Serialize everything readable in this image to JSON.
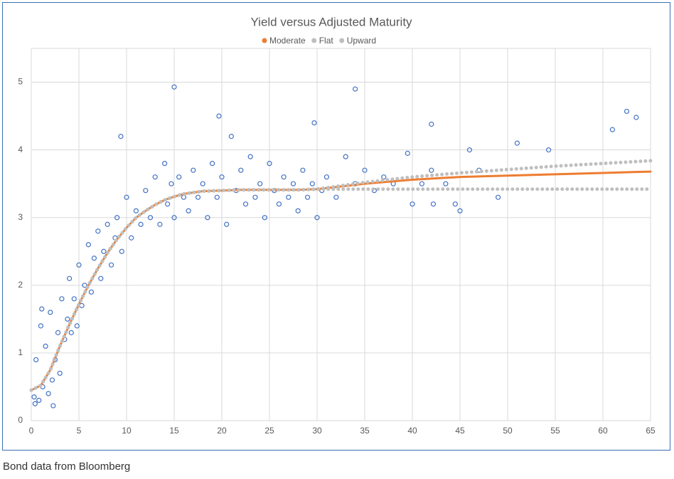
{
  "chart_data": {
    "type": "scatter",
    "title": "Yield versus Adjusted Maturity",
    "xlim": [
      0,
      65
    ],
    "xticks": [
      0,
      5,
      10,
      15,
      20,
      25,
      30,
      35,
      40,
      45,
      50,
      55,
      60,
      65
    ],
    "ylim": [
      0,
      5.5
    ],
    "yticks": [
      0,
      1,
      2,
      3,
      4,
      5
    ],
    "grid": true,
    "series": [
      {
        "style": "bubble",
        "color": "#4472c4",
        "x": [
          0.3,
          0.5,
          0.8,
          1,
          1.2,
          1.5,
          1.8,
          2,
          2.2,
          2.5,
          2.8,
          3,
          3.2,
          3.5,
          3.8,
          4,
          4.2,
          4.5,
          4.8,
          5,
          5.3,
          5.6,
          6,
          6.3,
          6.6,
          7,
          7.3,
          7.6,
          8,
          8.4,
          8.8,
          9,
          9.5,
          10,
          10.5,
          11,
          11.5,
          12,
          12.5,
          13,
          13.5,
          14,
          14.3,
          14.7,
          15,
          15.5,
          16,
          16.5,
          17,
          17.5,
          18,
          18.5,
          19,
          19.5,
          20,
          20.5,
          21,
          21.5,
          22,
          22.5,
          23,
          23.5,
          24,
          24.5,
          25,
          25.5,
          26,
          26.5,
          27,
          27.5,
          28,
          28.5,
          29,
          29.5,
          30,
          30.5,
          31,
          32,
          33,
          34,
          35,
          36,
          37,
          38,
          39.5,
          40,
          41,
          42,
          42.2,
          43.5,
          44.5,
          45,
          46,
          47,
          49,
          51,
          54.3,
          61,
          62.5,
          63.5,
          15,
          34,
          19.7,
          29.7,
          9.4,
          42,
          1.1,
          0.4,
          2.3
        ],
        "values": [
          0.35,
          0.9,
          0.3,
          1.4,
          0.5,
          1.1,
          0.4,
          1.6,
          0.6,
          0.9,
          1.3,
          0.7,
          1.8,
          1.2,
          1.5,
          2.1,
          1.3,
          1.8,
          1.4,
          2.3,
          1.7,
          2.0,
          2.6,
          1.9,
          2.4,
          2.8,
          2.1,
          2.5,
          2.9,
          2.3,
          2.7,
          3.0,
          2.5,
          3.3,
          2.7,
          3.1,
          2.9,
          3.4,
          3.0,
          3.6,
          2.9,
          3.8,
          3.2,
          3.5,
          3.0,
          3.6,
          3.3,
          3.1,
          3.7,
          3.3,
          3.5,
          3.0,
          3.8,
          3.3,
          3.6,
          2.9,
          4.2,
          3.4,
          3.7,
          3.2,
          3.9,
          3.3,
          3.5,
          3.0,
          3.8,
          3.4,
          3.2,
          3.6,
          3.3,
          3.5,
          3.1,
          3.7,
          3.3,
          3.5,
          3.0,
          3.4,
          3.6,
          3.3,
          3.9,
          3.5,
          3.7,
          3.4,
          3.6,
          3.5,
          3.95,
          3.2,
          3.5,
          3.7,
          3.2,
          3.5,
          3.2,
          3.1,
          4.0,
          3.7,
          3.3,
          4.1,
          4.0,
          4.3,
          4.57,
          4.48,
          4.93,
          4.9,
          4.5,
          4.4,
          4.2,
          4.38,
          1.65,
          0.25,
          0.22
        ]
      },
      {
        "name": "Moderate",
        "style": "line",
        "color": "#ed7d31",
        "x": [
          0,
          1,
          2,
          3,
          4,
          5,
          6,
          7,
          8,
          9,
          10,
          11,
          12,
          13,
          14,
          15,
          16,
          17,
          18,
          20,
          22,
          25,
          28,
          30,
          35,
          40,
          45,
          50,
          55,
          60,
          65
        ],
        "values": [
          0.45,
          0.52,
          0.75,
          1.1,
          1.42,
          1.72,
          2.0,
          2.25,
          2.48,
          2.68,
          2.85,
          3.0,
          3.1,
          3.19,
          3.26,
          3.31,
          3.35,
          3.37,
          3.39,
          3.4,
          3.41,
          3.41,
          3.41,
          3.42,
          3.5,
          3.56,
          3.6,
          3.62,
          3.64,
          3.66,
          3.68
        ]
      },
      {
        "name": "Flat",
        "style": "dotted",
        "color": "#bfbfbf",
        "x": [
          0,
          1,
          2,
          3,
          4,
          5,
          6,
          7,
          8,
          9,
          10,
          11,
          12,
          13,
          14,
          15,
          16,
          17,
          18,
          20,
          22,
          25,
          28,
          30,
          35,
          40,
          45,
          50,
          55,
          60,
          65
        ],
        "values": [
          0.45,
          0.52,
          0.75,
          1.1,
          1.42,
          1.72,
          2.0,
          2.25,
          2.48,
          2.68,
          2.85,
          3.0,
          3.1,
          3.19,
          3.26,
          3.31,
          3.35,
          3.37,
          3.39,
          3.4,
          3.41,
          3.41,
          3.41,
          3.42,
          3.42,
          3.42,
          3.42,
          3.42,
          3.42,
          3.42,
          3.42
        ]
      },
      {
        "name": "Upward",
        "style": "dotted",
        "color": "#bfbfbf",
        "x": [
          0,
          1,
          2,
          3,
          4,
          5,
          6,
          7,
          8,
          9,
          10,
          11,
          12,
          13,
          14,
          15,
          16,
          17,
          18,
          20,
          22,
          25,
          28,
          30,
          35,
          40,
          45,
          50,
          55,
          60,
          65
        ],
        "values": [
          0.45,
          0.52,
          0.75,
          1.1,
          1.42,
          1.72,
          2.0,
          2.25,
          2.48,
          2.68,
          2.85,
          3.0,
          3.1,
          3.19,
          3.26,
          3.31,
          3.35,
          3.37,
          3.39,
          3.4,
          3.41,
          3.41,
          3.41,
          3.42,
          3.52,
          3.6,
          3.66,
          3.71,
          3.76,
          3.8,
          3.84
        ]
      }
    ]
  },
  "caption": "Bond data from Bloomberg"
}
